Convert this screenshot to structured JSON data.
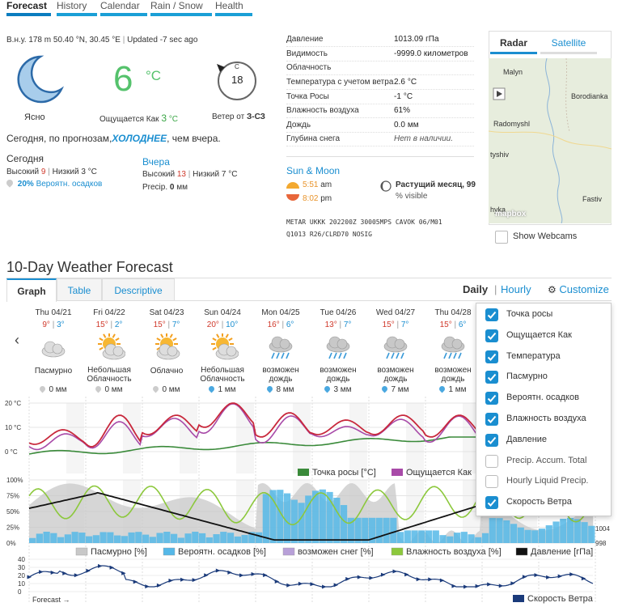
{
  "nav": [
    "Forecast",
    "History",
    "Calendar",
    "Rain / Snow",
    "Health"
  ],
  "station": {
    "elev_label": "В.н.у.",
    "elev": "178 m",
    "coords": "50.40 °N, 30.45 °E",
    "updated": "Updated -7 sec ago"
  },
  "current": {
    "condition": "Ясно",
    "temp": "6",
    "unit": "°C",
    "feels_label": "Ощущается Как",
    "feels": "3",
    "feels_unit": "°C",
    "wind_speed": "18",
    "wind_dir_letter": "С",
    "wind_label": "Ветер от",
    "wind_dir": "З-СЗ"
  },
  "summary": {
    "prefix": "Сегодня, по прогнозам,",
    "highlight": "ХОЛОДНЕЕ",
    "suffix": ", чем вчера."
  },
  "today": {
    "title": "Сегодня",
    "high_label": "Высокий",
    "high": "9",
    "low_label": "Низкий",
    "low": "3",
    "unit": "°C",
    "precip": "20%",
    "precip_label": "Вероятн. осадков"
  },
  "yesterday": {
    "title": "Вчера",
    "high_label": "Высокий",
    "high": "13",
    "low_label": "Низкий",
    "low": "7",
    "unit": "°C",
    "precip_label": "Precip.",
    "precip": "0",
    "precip_unit": "мм"
  },
  "conditions": [
    {
      "label": "Давление",
      "value": "1013.09",
      "unit": "гПа"
    },
    {
      "label": "Видимость",
      "value": "-9999.0",
      "unit": "километров"
    },
    {
      "label": "Облачность",
      "value": "",
      "unit": ""
    },
    {
      "label": "Температура с учетом ветра",
      "value": "2.6",
      "unit": "°C"
    },
    {
      "label": "Точка Росы",
      "value": "-1",
      "unit": "°C"
    },
    {
      "label": "Влажность воздуха",
      "value": "61%",
      "unit": ""
    },
    {
      "label": "Дождь",
      "value": "0.0",
      "unit": "мм"
    },
    {
      "label": "Глубина снега",
      "value": "Нет в наличии.",
      "unit": ""
    }
  ],
  "sun_moon": {
    "title": "Sun & Moon",
    "sunrise": "5:51",
    "sunrise_unit": "am",
    "sunset": "8:02",
    "sunset_unit": "pm",
    "moon_phase": "Растущий месяц, 99",
    "moon_visible": "% visible"
  },
  "metar": {
    "line1": "METAR UKKK 202200Z 30005MPS CAVOK 06/M01",
    "line2": "Q1013 R26/CLRD70 NOSIG"
  },
  "map": {
    "tabs": [
      "Radar",
      "Satellite"
    ],
    "labels": [
      "Malyn",
      "Borodianka",
      "Radomyshl",
      "tyshiv",
      "Fastiv",
      "hyka"
    ],
    "logo": "mapbox",
    "webcams": "Show Webcams"
  },
  "forecast": {
    "title": "10-Day Weather Forecast",
    "tabs": [
      "Graph",
      "Table",
      "Descriptive"
    ],
    "daily": "Daily",
    "hourly": "Hourly",
    "customize": "Customize",
    "days": [
      {
        "date": "Thu 04/21",
        "hi": "9°",
        "lo": "3°",
        "cond": "Пасмурно",
        "precip": "0 мм",
        "icon": "cloud"
      },
      {
        "date": "Fri 04/22",
        "hi": "15°",
        "lo": "2°",
        "cond": "Небольшая Облачность",
        "precip": "0 мм",
        "icon": "sun-cloud"
      },
      {
        "date": "Sat 04/23",
        "hi": "15°",
        "lo": "7°",
        "cond": "Облачно",
        "precip": "0 мм",
        "icon": "sun-cloud-2"
      },
      {
        "date": "Sun 04/24",
        "hi": "20°",
        "lo": "10°",
        "cond": "Небольшая Облачность",
        "precip": "1 мм",
        "icon": "sun-cloud"
      },
      {
        "date": "Mon 04/25",
        "hi": "16°",
        "lo": "6°",
        "cond": "возможен дождь",
        "precip": "8 мм",
        "icon": "rain"
      },
      {
        "date": "Tue 04/26",
        "hi": "13°",
        "lo": "7°",
        "cond": "возможен дождь",
        "precip": "3 мм",
        "icon": "rain"
      },
      {
        "date": "Wed 04/27",
        "hi": "15°",
        "lo": "7°",
        "cond": "возможен дождь",
        "precip": "7 мм",
        "icon": "rain"
      },
      {
        "date": "Thu 04/28",
        "hi": "15°",
        "lo": "6°",
        "cond": "возможен дождь",
        "precip": "1 мм",
        "icon": "rain"
      }
    ],
    "customize_options": [
      {
        "label": "Точка росы",
        "checked": true
      },
      {
        "label": "Ощущается Как",
        "checked": true
      },
      {
        "label": "Температура",
        "checked": true
      },
      {
        "label": "Пасмурно",
        "checked": true
      },
      {
        "label": "Вероятн. осадков",
        "checked": true
      },
      {
        "label": "Влажность воздуха",
        "checked": true
      },
      {
        "label": "Давление",
        "checked": true
      },
      {
        "label": "Precip. Accum. Total",
        "checked": false
      },
      {
        "label": "Hourly Liquid Precip.",
        "checked": false
      },
      {
        "label": "Скорость Ветра",
        "checked": true
      }
    ],
    "temp_axis": [
      "20 °C",
      "10 °C",
      "0 °C"
    ],
    "pct_axis": [
      "100%",
      "75%",
      "50%",
      "25%",
      "0%"
    ],
    "pressure_axis": [
      "1004",
      "998"
    ],
    "wind_axis": [
      "40",
      "30",
      "20",
      "10",
      "0"
    ],
    "legend_temp": [
      "Точка росы [°C]",
      "Ощущается Как"
    ],
    "legend_pct": [
      "Пасмурно [%]",
      "Вероятн. осадков [%]",
      "возможен снег [%]",
      "Влажность воздуха [%]",
      "Давление [гПа]"
    ],
    "legend_wind": "Скорость Ветра",
    "footer": "Forecast →"
  },
  "colors": {
    "accent": "#1a8ed0",
    "temp": "#c8283c",
    "feels": "#a84aa8",
    "dew": "#3a8a3a",
    "cloud": "#c8c8c8",
    "precip": "#55b8e8",
    "humidity": "#8cc83c",
    "pressure": "#111111",
    "wind": "#1a3a7a"
  }
}
